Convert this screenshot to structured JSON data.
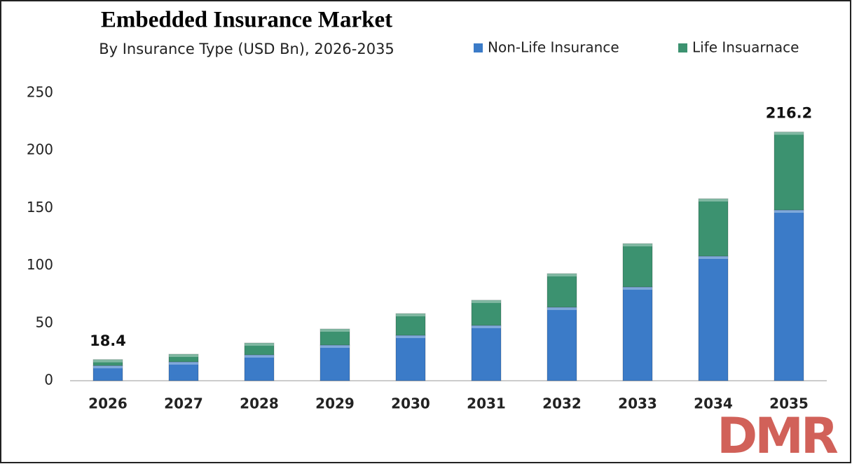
{
  "chart_data": {
    "type": "stacked_bar",
    "title": "Embedded Insurance Market",
    "subtitle": "By Insurance Type (USD Bn), 2026-2035",
    "categories": [
      "2026",
      "2027",
      "2028",
      "2029",
      "2030",
      "2031",
      "2032",
      "2033",
      "2034",
      "2035"
    ],
    "series": [
      {
        "name": "Non-Life Insurance",
        "color": "#3b7bc8",
        "values": [
          13.2,
          16.4,
          22.5,
          31.0,
          39.5,
          48.1,
          63.9,
          81.5,
          108.3,
          148.4
        ]
      },
      {
        "name": "Life Insuarnace",
        "color": "#3c9270",
        "values": [
          5.2,
          6.7,
          10.3,
          14.0,
          18.9,
          21.9,
          29.2,
          37.7,
          49.9,
          67.8
        ]
      }
    ],
    "annotations": [
      {
        "category": "2026",
        "text": "18.4"
      },
      {
        "category": "2035",
        "text": "216.2"
      }
    ],
    "ylim": [
      0,
      250
    ],
    "yticks": [
      0,
      50,
      100,
      150,
      200,
      250
    ],
    "grid": false,
    "legend": "top-right",
    "watermark": "DMR"
  }
}
